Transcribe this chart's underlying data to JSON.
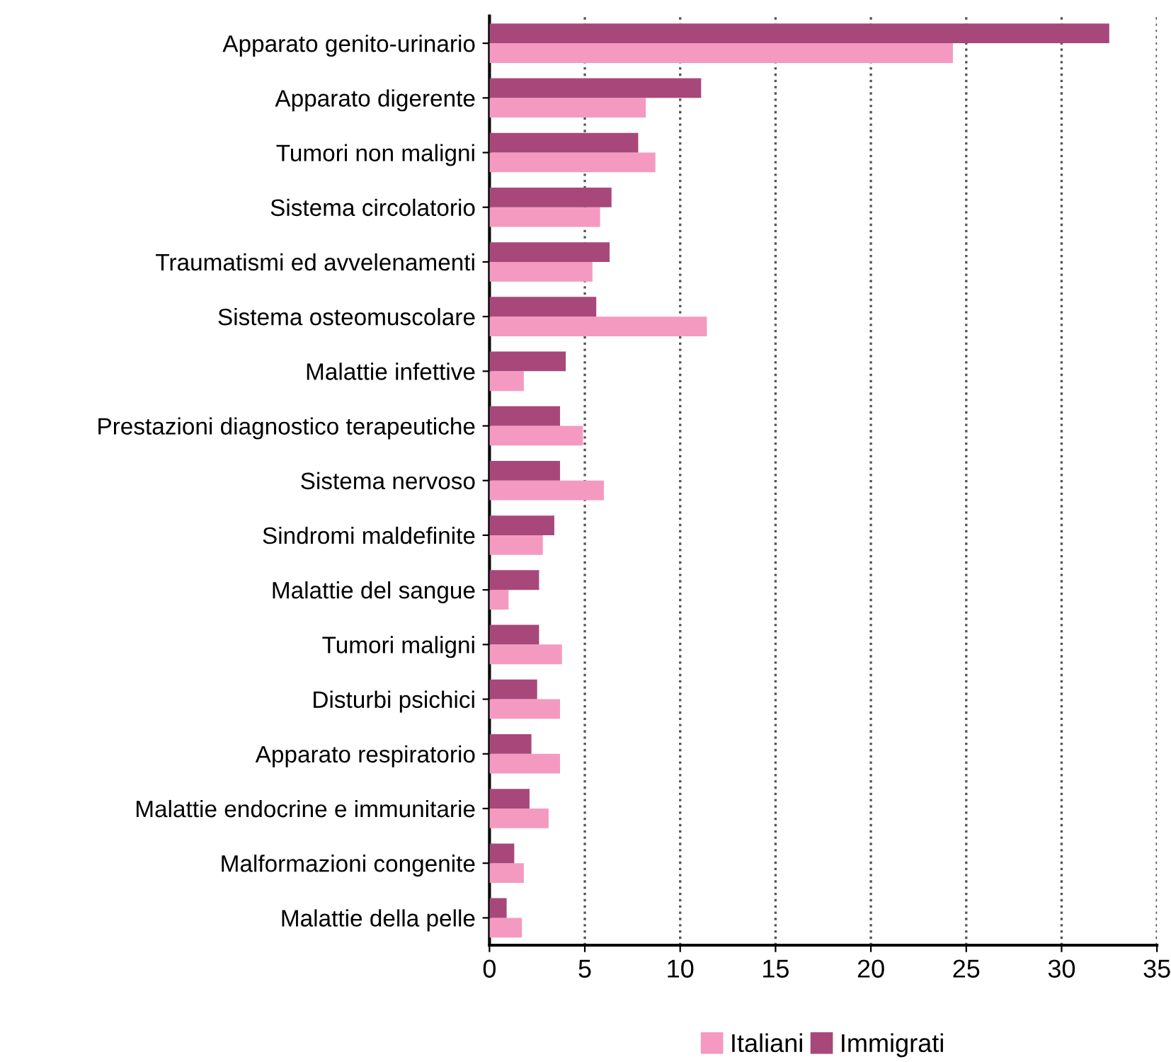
{
  "chart_data": {
    "type": "bar",
    "orientation": "horizontal",
    "categories": [
      "Apparato genito-urinario",
      "Apparato digerente",
      "Tumori non maligni",
      "Sistema circolatorio",
      "Traumatismi ed avvelenamenti",
      "Sistema osteomuscolare",
      "Malattie infettive",
      "Prestazioni diagnostico terapeutiche",
      "Sistema nervoso",
      "Sindromi maldefinite",
      "Malattie del sangue",
      "Tumori maligni",
      "Disturbi psichici",
      "Apparato respiratorio",
      "Malattie endocrine e immunitarie",
      "Malformazioni congenite",
      "Malattie della pelle"
    ],
    "series": [
      {
        "name": "Italiani",
        "color": "#f49ac0",
        "values": [
          24.3,
          8.2,
          8.7,
          5.8,
          5.4,
          11.4,
          1.8,
          4.9,
          6.0,
          2.8,
          1.0,
          3.8,
          3.7,
          3.7,
          3.1,
          1.8,
          1.7
        ]
      },
      {
        "name": "Immigrati",
        "color": "#a8487a",
        "values": [
          32.5,
          11.1,
          7.8,
          6.4,
          6.3,
          5.6,
          4.0,
          3.7,
          3.7,
          3.4,
          2.6,
          2.6,
          2.5,
          2.2,
          2.1,
          1.3,
          0.9
        ]
      }
    ],
    "xlim": [
      0,
      35
    ],
    "xticks": [
      0,
      5,
      10,
      15,
      20,
      25,
      30,
      35
    ],
    "grid": "x",
    "legend": "bottom"
  }
}
